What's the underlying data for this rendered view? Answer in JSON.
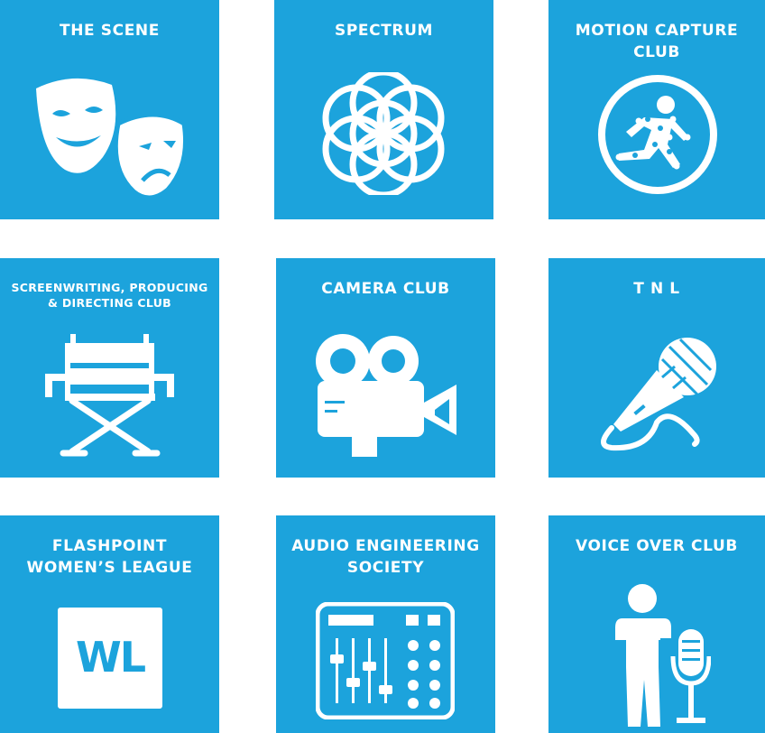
{
  "tiles": [
    {
      "title": "THE SCENE",
      "icon": "theater-masks-icon"
    },
    {
      "title": "SPECTRUM",
      "icon": "flower-of-life-icon"
    },
    {
      "title": "MOTION CAPTURE\nCLUB",
      "icon": "motion-capture-runner-icon"
    },
    {
      "title": "SCREENWRITING, PRODUCING\n& DIRECTING CLUB",
      "icon": "directors-chair-icon"
    },
    {
      "title": "CAMERA CLUB",
      "icon": "film-camera-icon"
    },
    {
      "title": "T N L",
      "icon": "microphone-icon"
    },
    {
      "title": "FLASHPOINT\nWOMEN’S LEAGUE",
      "icon": "wl-logo-icon",
      "logo_text": "WL"
    },
    {
      "title": "AUDIO ENGINEERING\nSOCIETY",
      "icon": "mixing-console-icon"
    },
    {
      "title": "VOICE OVER CLUB",
      "icon": "voice-actor-microphone-icon"
    }
  ],
  "colors": {
    "tile": "#1ca3dc",
    "icon": "#ffffff",
    "background": "#ffffff"
  }
}
